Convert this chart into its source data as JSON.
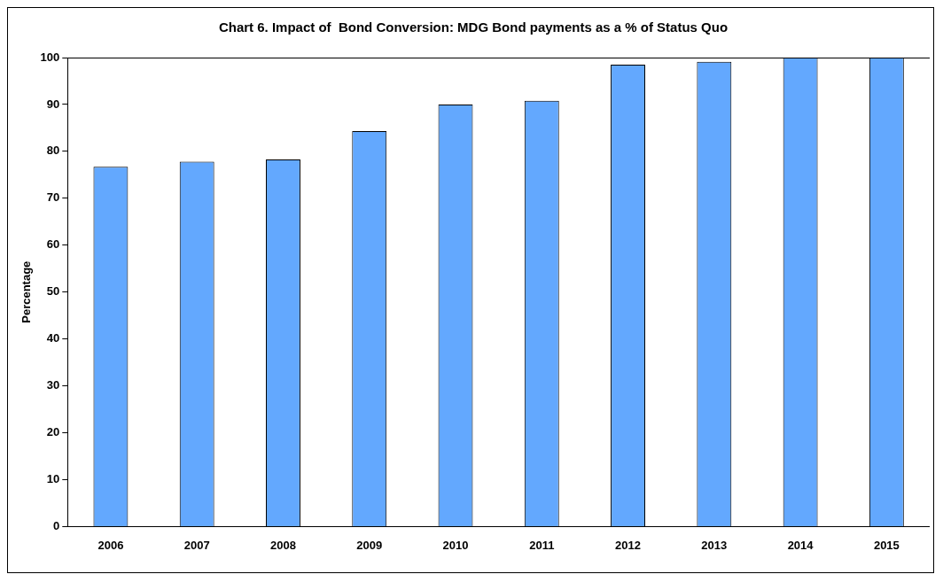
{
  "chart_data": {
    "type": "bar",
    "title": "Chart 6. Impact of  Bond Conversion: MDG Bond payments as a % of Status Quo",
    "ylabel": "Percentage",
    "categories": [
      "2006",
      "2007",
      "2008",
      "2009",
      "2010",
      "2011",
      "2012",
      "2013",
      "2014",
      "2015"
    ],
    "values": [
      76.7,
      77.8,
      78.3,
      84.3,
      90,
      90.8,
      98.5,
      99.1,
      100,
      100
    ],
    "color": "#63a8fe",
    "ylim": [
      0,
      100
    ],
    "yticks": [
      0,
      10,
      20,
      30,
      40,
      50,
      60,
      70,
      80,
      90,
      100
    ],
    "grid": false,
    "legend": false
  }
}
